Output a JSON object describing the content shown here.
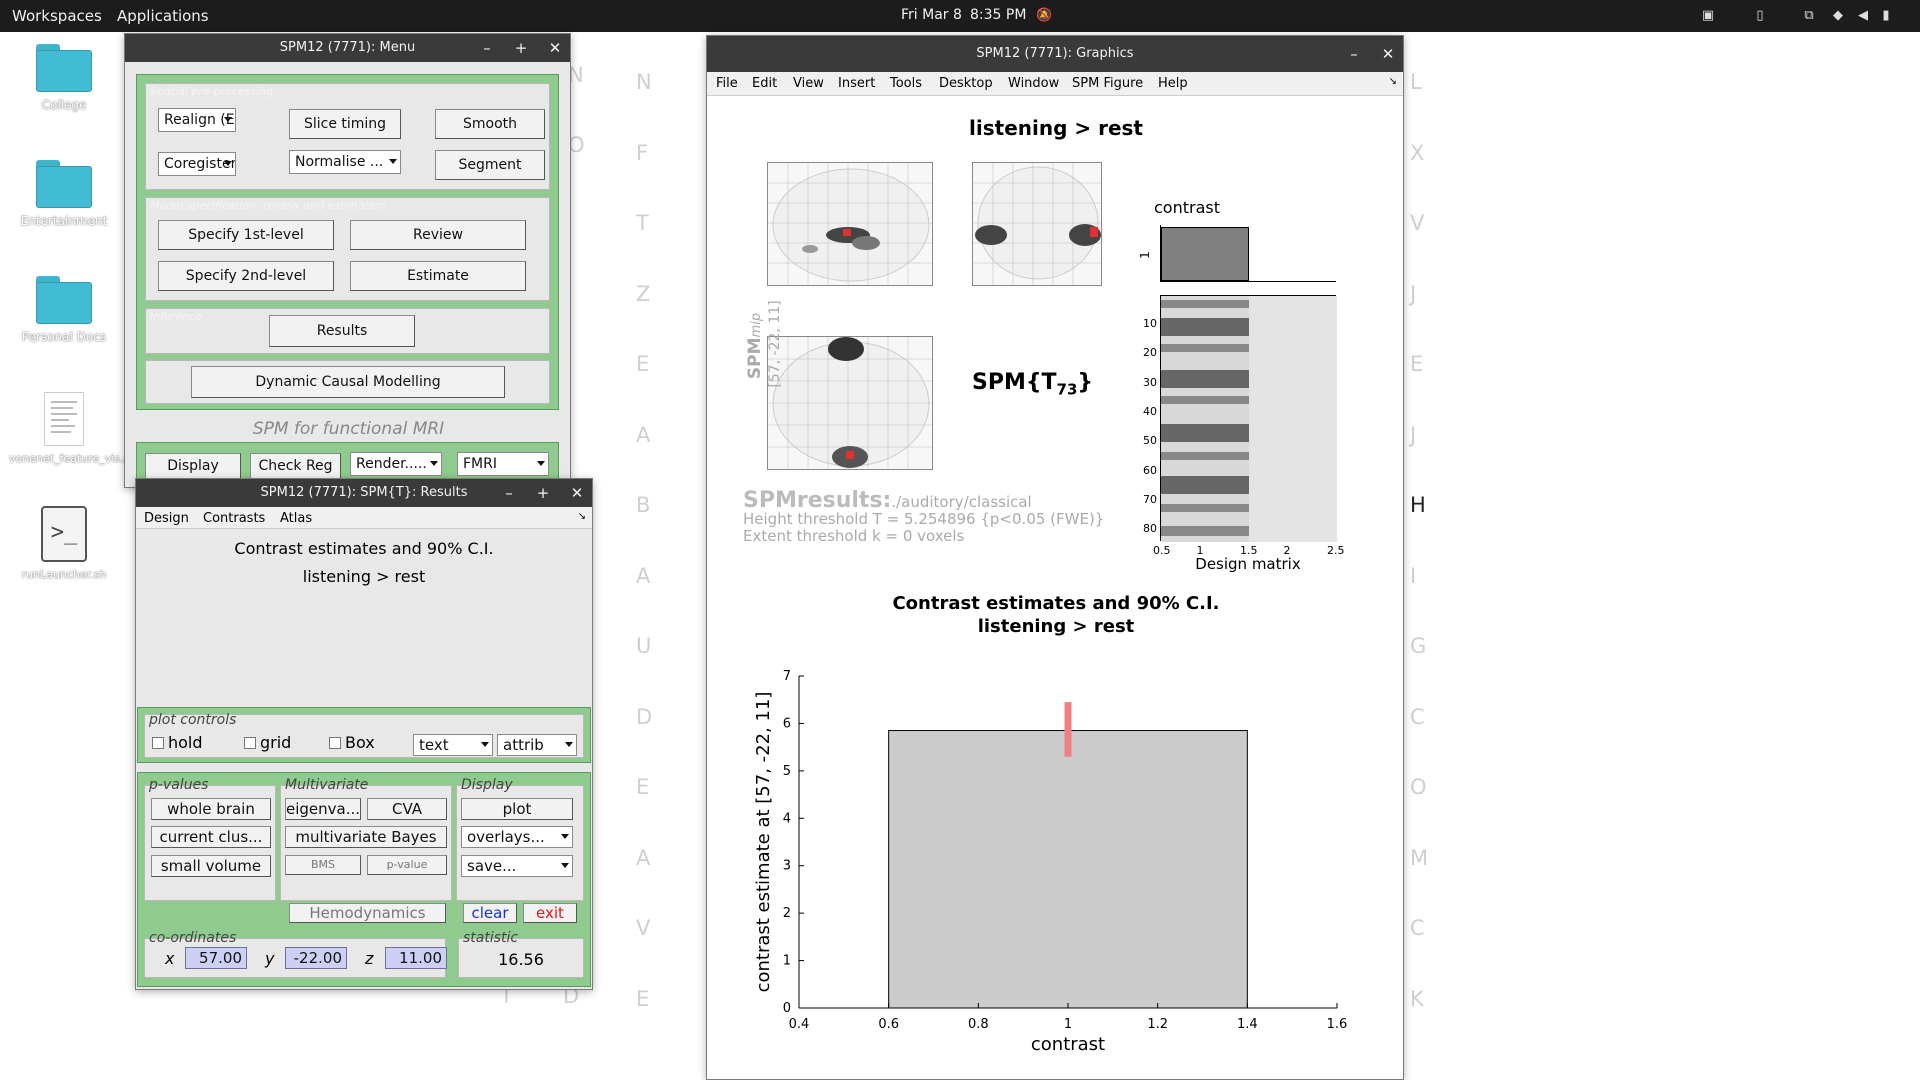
{
  "topbar": {
    "workspaces": "Workspaces",
    "applications": "Applications",
    "date": "Fri Mar 8",
    "time": "8:35 PM"
  },
  "desktop": {
    "icons": [
      {
        "label": "College"
      },
      {
        "label": "Entertainment"
      },
      {
        "label": "Personal Docs"
      },
      {
        "label": "vonenet_feature_vis.pdf"
      },
      {
        "label": "runLauncher.sh"
      }
    ]
  },
  "background_letters": {
    "col1": [
      "N",
      "F",
      "T",
      "Z",
      "E",
      "A",
      "B",
      "A",
      "U",
      "D",
      "E",
      "A",
      "V",
      "E"
    ],
    "col2": [
      "L",
      "X",
      "V",
      "J",
      "E",
      "J",
      "H",
      "I",
      "G",
      "C",
      "O",
      "M",
      "C",
      "K"
    ]
  },
  "menu_window": {
    "title": "SPM12 (7771): Menu",
    "spatial_label": "Spatial pre-processing",
    "realign": "Realign (Es...",
    "slice_timing": "Slice timing",
    "smooth": "Smooth",
    "coregister": "Coregister ...",
    "normalise": "Normalise ...",
    "segment": "Segment",
    "model_label": "Model specification, review and estimation",
    "specify1": "Specify 1st-level",
    "review": "Review",
    "specify2": "Specify 2nd-level",
    "estimate": "Estimate",
    "inference_label": "Inference",
    "results": "Results",
    "dcm": "Dynamic Causal Modelling",
    "tagline": "SPM for functional MRI",
    "display": "Display",
    "check_reg": "Check Reg",
    "render": "Render.....",
    "modality": "FMRI"
  },
  "results_window": {
    "title": "SPM12 (7771): SPM{T}: Results",
    "menus": [
      "Design",
      "Contrasts",
      "Atlas"
    ],
    "heading1": "Contrast estimates and 90% C.I.",
    "heading2": "listening > rest",
    "plot_controls": "plot controls",
    "hold": "hold",
    "grid": "grid",
    "box": "Box",
    "text_popup": "text",
    "attrib_popup": "attrib",
    "pvalues": "p-values",
    "whole_brain": "whole brain",
    "current_cluster": "current clus...",
    "small_volume": "small volume",
    "multivariate": "Multivariate",
    "eigenvariate": "eigenva...",
    "cva": "CVA",
    "mv_bayes": "multivariate Bayes",
    "bms": "BMS",
    "pvalue": "p-value",
    "display": "Display",
    "plot": "plot",
    "overlays": "overlays...",
    "save": "save...",
    "hemodynamics": "Hemodynamics",
    "clear": "clear",
    "exit": "exit",
    "coordinates": "co-ordinates",
    "x_label": "x",
    "y_label": "y",
    "z_label": "z",
    "x_value": "57.00",
    "y_value": "-22.00",
    "z_value": "11.00",
    "statistic_label": "statistic",
    "statistic_value": "16.56"
  },
  "graphics_window": {
    "title": "SPM12 (7771): Graphics",
    "menus": [
      "File",
      "Edit",
      "View",
      "Insert",
      "Tools",
      "Desktop",
      "Window",
      "SPM Figure",
      "Help"
    ],
    "contrast_title": "listening > rest",
    "spm_label": "SPM",
    "mip_label": "mip",
    "mip_coords": "[57, -22, 11]",
    "stat_symbol": "SPM{T",
    "stat_df": "73",
    "stat_close": "}",
    "contrast_label": "contrast",
    "contrast_tick": "1",
    "design_matrix_label": "Design matrix",
    "spmresults": "SPMresults:",
    "path": "./auditory/classical",
    "height_threshold": "Height threshold T = 5.254896  {p<0.05 (FWE)}",
    "extent_threshold": "Extent threshold k = 0 voxels",
    "dm_yticks": [
      "10",
      "20",
      "30",
      "40",
      "50",
      "60",
      "70",
      "80"
    ],
    "dm_xticks": [
      "0.5",
      "1",
      "1.5",
      "2",
      "2.5"
    ]
  },
  "chart_data": {
    "type": "bar",
    "title": "Contrast estimates and 90% C.I.",
    "subtitle": "listening > rest",
    "xlabel": "contrast",
    "ylabel": "contrast estimate at [57, -22, 11]",
    "categories": [
      "1"
    ],
    "values": [
      5.85
    ],
    "ci": [
      [
        5.3,
        6.45
      ]
    ],
    "xlim": [
      0.4,
      1.6
    ],
    "ylim": [
      0,
      7
    ],
    "xticks": [
      "0.4",
      "0.6",
      "0.8",
      "1",
      "1.2",
      "1.4",
      "1.6"
    ],
    "yticks": [
      "0",
      "1",
      "2",
      "3",
      "4",
      "5",
      "6",
      "7"
    ],
    "bar_color": "#cccccc",
    "ci_color": "#f08080"
  }
}
